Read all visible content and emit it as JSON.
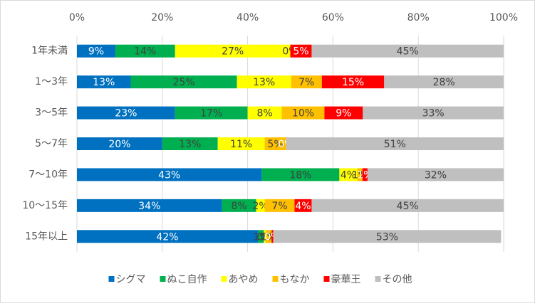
{
  "chart_data": {
    "type": "stacked-bar-horizontal",
    "categories": [
      "1年未満",
      "1～3年",
      "3～5年",
      "5～7年",
      "7～10年",
      "10～15年",
      "15年以上"
    ],
    "series": [
      {
        "name": "シグマ",
        "color": "#0070C0",
        "values": [
          9,
          12.6,
          23,
          20,
          43.3,
          34,
          42.4
        ],
        "value_labels": [
          "9%",
          "13%",
          "23%",
          "20%",
          "43%",
          "34%",
          "42%"
        ]
      },
      {
        "name": "ぬこ自作",
        "color": "#00B050",
        "values": [
          14,
          24.9,
          17,
          13,
          18.2,
          8,
          1.4
        ],
        "value_labels": [
          "14%",
          "25%",
          "17%",
          "13%",
          "18%",
          "8%",
          "1%"
        ]
      },
      {
        "name": "あやめ",
        "color": "#FFFF00",
        "values": [
          27,
          12.7,
          8,
          11,
          4.2,
          2,
          0.4
        ],
        "value_labels": [
          "27%",
          "13%",
          "8%",
          "11%",
          "4%",
          "2%",
          "0%"
        ]
      },
      {
        "name": "もなか",
        "color": "#FFC000",
        "values": [
          0,
          7.2,
          10,
          5,
          1.2,
          7,
          1.4
        ],
        "value_labels": [
          "0%",
          "7%",
          "10%",
          "5%",
          "1%",
          "7%",
          "1%"
        ]
      },
      {
        "name": "豪華王",
        "color": "#FF0000",
        "values": [
          5,
          14.6,
          9,
          0,
          1.2,
          4,
          0.4
        ],
        "value_labels": [
          "5%",
          "15%",
          "9%",
          "0%",
          "1%",
          "4%",
          "0%"
        ]
      },
      {
        "name": "その他",
        "color": "#BFBFBF",
        "values": [
          45,
          28,
          33,
          51,
          31.9,
          45,
          53.4
        ],
        "value_labels": [
          "45%",
          "28%",
          "33%",
          "51%",
          "32%",
          "45%",
          "53%"
        ]
      }
    ],
    "xlim": [
      0,
      100
    ],
    "xticks": [
      {
        "value": 0,
        "label": "0%"
      },
      {
        "value": 20,
        "label": "20%"
      },
      {
        "value": 40,
        "label": "40%"
      },
      {
        "value": 60,
        "label": "60%"
      },
      {
        "value": 80,
        "label": "80%"
      },
      {
        "value": 100,
        "label": "100%"
      }
    ],
    "grid": true,
    "legend": "bottom"
  }
}
